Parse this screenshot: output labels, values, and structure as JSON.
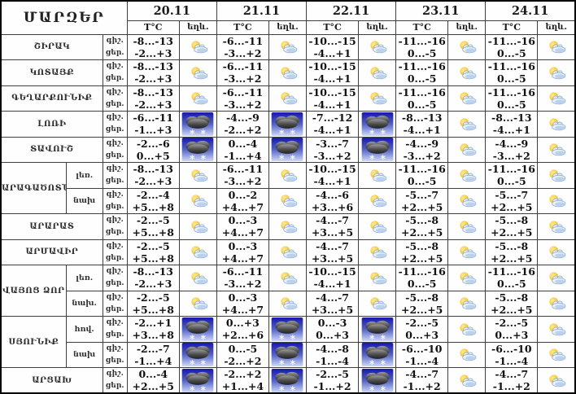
{
  "header": {
    "regions_label": "ՄԱՐԶԵՐ",
    "dates": [
      "20.11",
      "21.11",
      "22.11",
      "23.11",
      "24.11"
    ],
    "temp_label": "T°C",
    "weather_label": "եղև."
  },
  "labels": {
    "night": "գիշ.",
    "day": "ցեր."
  },
  "icons": {
    "pc": "partly-cloudy-icon",
    "snow": "snow-cloud-icon"
  },
  "colors": {
    "snow_bg_top": "#1717ae",
    "snow_bg_bottom": "#cfd9f7",
    "sun": "#f6a31c",
    "cloud_light": "#e9f1fb",
    "cloud_dark": "#2a2a2a",
    "border": "#3f3f3f"
  },
  "rows": [
    {
      "region": "ՇԻՐԱԿ",
      "groups": [
        {
          "sublabel": "",
          "cells": [
            {
              "n": "-8...-13",
              "d": "-2...+3",
              "w": "pc"
            },
            {
              "n": "-6...-11",
              "d": "-3...+2",
              "w": "pc"
            },
            {
              "n": "-10...-15",
              "d": "-4...+1",
              "w": "pc"
            },
            {
              "n": "-11...-16",
              "d": "0...-5",
              "w": "pc"
            },
            {
              "n": "-11...-16",
              "d": "0...-5",
              "w": "pc"
            }
          ]
        }
      ]
    },
    {
      "region": "ԿՈՏԱՅՔ",
      "groups": [
        {
          "sublabel": "",
          "cells": [
            {
              "n": "-8...-13",
              "d": "-2...+3",
              "w": "pc"
            },
            {
              "n": "-6...-11",
              "d": "-3...+2",
              "w": "pc"
            },
            {
              "n": "-10...-15",
              "d": "-4...+1",
              "w": "pc"
            },
            {
              "n": "-11...-16",
              "d": "0...-5",
              "w": "pc"
            },
            {
              "n": "-11...-16",
              "d": "0...-5",
              "w": "pc"
            }
          ]
        }
      ]
    },
    {
      "region": "ԳԵՂԱՐՔՈՒՆԻՔ",
      "groups": [
        {
          "sublabel": "",
          "cells": [
            {
              "n": "-8...-13",
              "d": "-2...+3",
              "w": "pc"
            },
            {
              "n": "-6...-11",
              "d": "-3...+2",
              "w": "pc"
            },
            {
              "n": "-10...-15",
              "d": "-4...+1",
              "w": "pc"
            },
            {
              "n": "-11...-16",
              "d": "0...-5",
              "w": "pc"
            },
            {
              "n": "-11...-16",
              "d": "0...-5",
              "w": "pc"
            }
          ]
        }
      ]
    },
    {
      "region": "ԼՈՌԻ",
      "groups": [
        {
          "sublabel": "",
          "cells": [
            {
              "n": "-6...-11",
              "d": "-1...+3",
              "w": "snow"
            },
            {
              "n": "-4...-9",
              "d": "-2...+2",
              "w": "snow"
            },
            {
              "n": "-7...-12",
              "d": "-4...+1",
              "w": "snow"
            },
            {
              "n": "-8...-13",
              "d": "-4...+1",
              "w": "pc"
            },
            {
              "n": "-8...-13",
              "d": "-4...+1",
              "w": "pc"
            }
          ]
        }
      ]
    },
    {
      "region": "ՏԱՎՈՒՇ",
      "groups": [
        {
          "sublabel": "",
          "cells": [
            {
              "n": "-2...-6",
              "d": "0...+5",
              "w": "snow"
            },
            {
              "n": "0...-4",
              "d": "-1...+4",
              "w": "snow"
            },
            {
              "n": "-3...-7",
              "d": "-3...+2",
              "w": "snow"
            },
            {
              "n": "-4...-9",
              "d": "-3...+2",
              "w": "pc"
            },
            {
              "n": "-4...-9",
              "d": "-3...+2",
              "w": "pc"
            }
          ]
        }
      ]
    },
    {
      "region": "ԱՐԱԳԱԾՈՏՆ",
      "groups": [
        {
          "sublabel": "լեռ.",
          "cells": [
            {
              "n": "-8...-13",
              "d": "-2...+3",
              "w": "pc"
            },
            {
              "n": "-6...-11",
              "d": "-3...+2",
              "w": "pc"
            },
            {
              "n": "-10...-15",
              "d": "-4...+1",
              "w": "pc"
            },
            {
              "n": "-11...-16",
              "d": "0...-5",
              "w": "pc"
            },
            {
              "n": "-11...-16",
              "d": "0...-5",
              "w": "pc"
            }
          ]
        },
        {
          "sublabel": "նախ",
          "cells": [
            {
              "n": "-2...-4",
              "d": "+5...+8",
              "w": "pc"
            },
            {
              "n": "0...-2",
              "d": "+4...+7",
              "w": "pc"
            },
            {
              "n": "-4...-6",
              "d": "+3...+6",
              "w": "pc"
            },
            {
              "n": "-5...-7",
              "d": "+2...+5",
              "w": "pc"
            },
            {
              "n": "-5...-7",
              "d": "+2...+5",
              "w": "pc"
            }
          ]
        }
      ]
    },
    {
      "region": "ԱՐԱՐԱՏ",
      "groups": [
        {
          "sublabel": "",
          "cells": [
            {
              "n": "-2...-5",
              "d": "+5...+8",
              "w": "pc"
            },
            {
              "n": "0...-3",
              "d": "+4...+7",
              "w": "pc"
            },
            {
              "n": "-4...-7",
              "d": "+3...+5",
              "w": "pc"
            },
            {
              "n": "-5...-8",
              "d": "+2...+5",
              "w": "pc"
            },
            {
              "n": "-5...-8",
              "d": "+2...+5",
              "w": "pc"
            }
          ]
        }
      ]
    },
    {
      "region": "ԱՐՄԱՎԻՐ",
      "groups": [
        {
          "sublabel": "",
          "cells": [
            {
              "n": "-2...-5",
              "d": "+5...+8",
              "w": "pc"
            },
            {
              "n": "0...-3",
              "d": "+4...+7",
              "w": "pc"
            },
            {
              "n": "-4...-7",
              "d": "+3...+5",
              "w": "pc"
            },
            {
              "n": "-5...-8",
              "d": "+2...+5",
              "w": "pc"
            },
            {
              "n": "-5...-8",
              "d": "+2...+5",
              "w": "pc"
            }
          ]
        }
      ]
    },
    {
      "region": "ՎԱՅՈՑ ՁՈՐ",
      "groups": [
        {
          "sublabel": "լեռ.",
          "cells": [
            {
              "n": "-8...-13",
              "d": "-2...+3",
              "w": "pc"
            },
            {
              "n": "-6...-11",
              "d": "-3...+2",
              "w": "pc"
            },
            {
              "n": "-10...-15",
              "d": "-4...+1",
              "w": "pc"
            },
            {
              "n": "-11...-16",
              "d": "0...-5",
              "w": "pc"
            },
            {
              "n": "-11...-16",
              "d": "0...-5",
              "w": "pc"
            }
          ]
        },
        {
          "sublabel": "նախ.",
          "cells": [
            {
              "n": "-2...-5",
              "d": "+5...+8",
              "w": "pc"
            },
            {
              "n": "0...-3",
              "d": "+4...+7",
              "w": "pc"
            },
            {
              "n": "-4...-7",
              "d": "+3...+5",
              "w": "pc"
            },
            {
              "n": "-5...-8",
              "d": "+2...+5",
              "w": "pc"
            },
            {
              "n": "-5...-8",
              "d": "+2...+5",
              "w": "pc"
            }
          ]
        }
      ]
    },
    {
      "region": "ՍՅՈՒՆԻՔ",
      "groups": [
        {
          "sublabel": "հով.",
          "cells": [
            {
              "n": "-2...+1",
              "d": "+3...+8",
              "w": "snow"
            },
            {
              "n": "0...+3",
              "d": "+2...+6",
              "w": "snow"
            },
            {
              "n": "0...-3",
              "d": "0...+3",
              "w": "snow"
            },
            {
              "n": "-2...-5",
              "d": "0...+3",
              "w": "pc"
            },
            {
              "n": "-2...-5",
              "d": "0...+3",
              "w": "pc"
            }
          ]
        },
        {
          "sublabel": "նախ",
          "cells": [
            {
              "n": "-2...-7",
              "d": "-1...+4",
              "w": "snow"
            },
            {
              "n": "0...-5",
              "d": "-2...+2",
              "w": "snow"
            },
            {
              "n": "-4...-8",
              "d": "-1...-4",
              "w": "snow"
            },
            {
              "n": "-6...-10",
              "d": "-1...-4",
              "w": "pc"
            },
            {
              "n": "-6...-10",
              "d": "-1...-4",
              "w": "pc"
            }
          ]
        }
      ]
    },
    {
      "region": "ԱՐՑԱԽ",
      "groups": [
        {
          "sublabel": "",
          "cells": [
            {
              "n": "0...-4",
              "d": "+2...+5",
              "w": "snow"
            },
            {
              "n": "-2...+2",
              "d": "+1...+4",
              "w": "snow"
            },
            {
              "n": "-2...-5",
              "d": "-1...+2",
              "w": "snow"
            },
            {
              "n": "-4...-7",
              "d": "-1...+2",
              "w": "pc"
            },
            {
              "n": "-4...-7",
              "d": "-1...+2",
              "w": "pc"
            }
          ]
        }
      ]
    }
  ]
}
